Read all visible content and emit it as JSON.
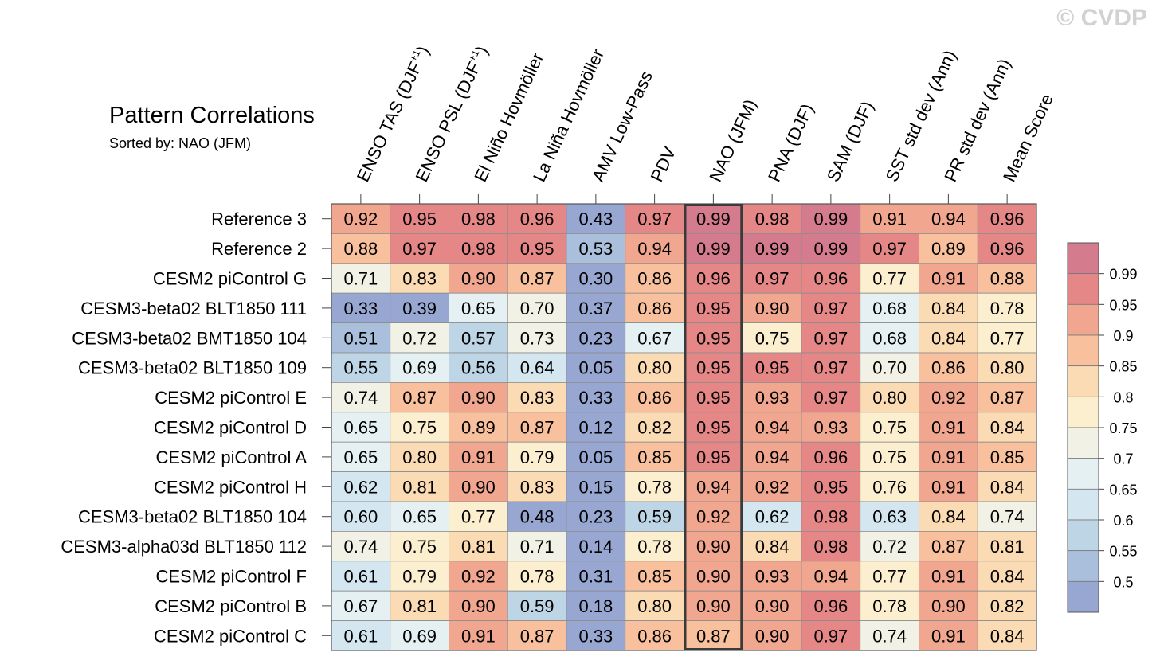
{
  "chart_data": {
    "type": "heatmap",
    "title": "Pattern Correlations",
    "subtitle": "Sorted by: NAO (JFM)",
    "watermark": "© CVDP",
    "highlight_column": "NAO (JFM)",
    "columns": [
      {
        "label": "ENSO TAS (DJF",
        "sup": "+1",
        "tail": ")"
      },
      {
        "label": "ENSO PSL (DJF",
        "sup": "+1",
        "tail": ")"
      },
      {
        "label": "El Niño Hovmöller",
        "sup": "",
        "tail": ""
      },
      {
        "label": "La Niña Hovmöller",
        "sup": "",
        "tail": ""
      },
      {
        "label": "AMV Low-Pass",
        "sup": "",
        "tail": ""
      },
      {
        "label": "PDV",
        "sup": "",
        "tail": ""
      },
      {
        "label": "NAO (JFM)",
        "sup": "",
        "tail": ""
      },
      {
        "label": "PNA (DJF)",
        "sup": "",
        "tail": ""
      },
      {
        "label": "SAM (DJF)",
        "sup": "",
        "tail": ""
      },
      {
        "label": "SST std dev (Ann)",
        "sup": "",
        "tail": ""
      },
      {
        "label": "PR std dev (Ann)",
        "sup": "",
        "tail": ""
      },
      {
        "label": "Mean Score",
        "sup": "",
        "tail": ""
      }
    ],
    "rows": [
      {
        "name": "Reference 3",
        "values": [
          "0.92",
          "0.95",
          "0.98",
          "0.96",
          "0.43",
          "0.97",
          "0.99",
          "0.98",
          "0.99",
          "0.91",
          "0.94",
          "0.96"
        ]
      },
      {
        "name": "Reference 2",
        "values": [
          "0.88",
          "0.97",
          "0.98",
          "0.95",
          "0.53",
          "0.94",
          "0.99",
          "0.99",
          "0.99",
          "0.97",
          "0.89",
          "0.96"
        ]
      },
      {
        "name": "CESM2 piControl G",
        "values": [
          "0.71",
          "0.83",
          "0.90",
          "0.87",
          "0.30",
          "0.86",
          "0.96",
          "0.97",
          "0.96",
          "0.77",
          "0.91",
          "0.88"
        ]
      },
      {
        "name": "CESM3-beta02 BLT1850 111",
        "values": [
          "0.33",
          "0.39",
          "0.65",
          "0.70",
          "0.37",
          "0.86",
          "0.95",
          "0.90",
          "0.97",
          "0.68",
          "0.84",
          "0.78"
        ]
      },
      {
        "name": "CESM3-beta02 BMT1850 104",
        "values": [
          "0.51",
          "0.72",
          "0.57",
          "0.73",
          "0.23",
          "0.67",
          "0.95",
          "0.75",
          "0.97",
          "0.68",
          "0.84",
          "0.77"
        ]
      },
      {
        "name": "CESM3-beta02 BLT1850 109",
        "values": [
          "0.55",
          "0.69",
          "0.56",
          "0.64",
          "0.05",
          "0.80",
          "0.95",
          "0.95",
          "0.97",
          "0.70",
          "0.86",
          "0.80"
        ]
      },
      {
        "name": "CESM2 piControl E",
        "values": [
          "0.74",
          "0.87",
          "0.90",
          "0.83",
          "0.33",
          "0.86",
          "0.95",
          "0.93",
          "0.97",
          "0.80",
          "0.92",
          "0.87"
        ]
      },
      {
        "name": "CESM2 piControl D",
        "values": [
          "0.65",
          "0.75",
          "0.89",
          "0.87",
          "0.12",
          "0.82",
          "0.95",
          "0.94",
          "0.93",
          "0.75",
          "0.91",
          "0.84"
        ]
      },
      {
        "name": "CESM2 piControl A",
        "values": [
          "0.65",
          "0.80",
          "0.91",
          "0.79",
          "0.05",
          "0.85",
          "0.95",
          "0.94",
          "0.96",
          "0.75",
          "0.91",
          "0.85"
        ]
      },
      {
        "name": "CESM2 piControl H",
        "values": [
          "0.62",
          "0.81",
          "0.90",
          "0.83",
          "0.15",
          "0.78",
          "0.94",
          "0.92",
          "0.95",
          "0.76",
          "0.91",
          "0.84"
        ]
      },
      {
        "name": "CESM3-beta02 BLT1850 104",
        "values": [
          "0.60",
          "0.65",
          "0.77",
          "0.48",
          "0.23",
          "0.59",
          "0.92",
          "0.62",
          "0.98",
          "0.63",
          "0.84",
          "0.74"
        ]
      },
      {
        "name": "CESM3-alpha03d BLT1850 112",
        "values": [
          "0.74",
          "0.75",
          "0.81",
          "0.71",
          "0.14",
          "0.78",
          "0.90",
          "0.84",
          "0.98",
          "0.72",
          "0.87",
          "0.81"
        ]
      },
      {
        "name": "CESM2 piControl F",
        "values": [
          "0.61",
          "0.79",
          "0.92",
          "0.78",
          "0.31",
          "0.85",
          "0.90",
          "0.93",
          "0.94",
          "0.77",
          "0.91",
          "0.84"
        ]
      },
      {
        "name": "CESM2 piControl B",
        "values": [
          "0.67",
          "0.81",
          "0.90",
          "0.59",
          "0.18",
          "0.80",
          "0.90",
          "0.90",
          "0.96",
          "0.78",
          "0.90",
          "0.82"
        ]
      },
      {
        "name": "CESM2 piControl C",
        "values": [
          "0.61",
          "0.69",
          "0.91",
          "0.87",
          "0.33",
          "0.86",
          "0.87",
          "0.90",
          "0.97",
          "0.74",
          "0.91",
          "0.84"
        ]
      }
    ],
    "colorbar": {
      "levels": [
        "0.5",
        "0.55",
        "0.6",
        "0.65",
        "0.7",
        "0.75",
        "0.8",
        "0.85",
        "0.9",
        "0.95",
        "0.99"
      ],
      "colors": [
        "#97a7d1",
        "#a9bfdc",
        "#bed5e6",
        "#d4e6ef",
        "#e5f0f3",
        "#f1f1e6",
        "#fcefd0",
        "#fbdbb4",
        "#f8c09d",
        "#f1a68f",
        "#e68787",
        "#d47b8d"
      ]
    }
  }
}
